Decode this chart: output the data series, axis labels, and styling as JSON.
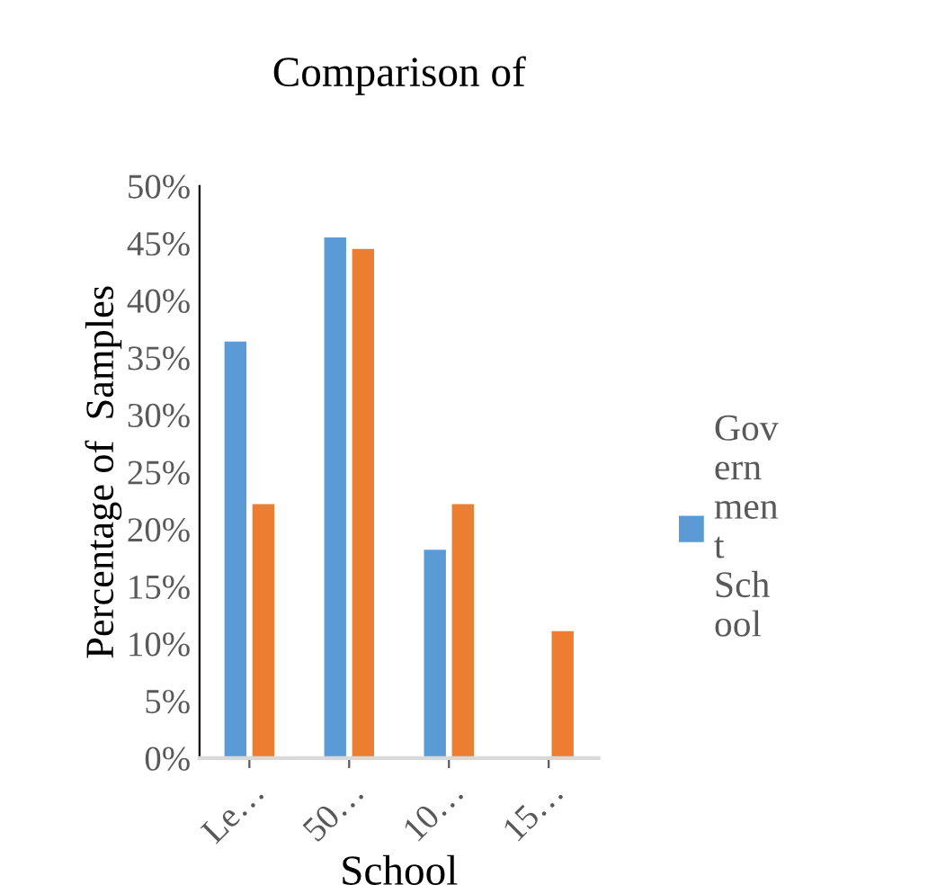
{
  "chart_data": {
    "type": "bar",
    "title": "Comparison of",
    "xlabel": "School",
    "ylabel": "Percentage of  Samples",
    "categories": [
      "Le…",
      "50…",
      "10…",
      "15…"
    ],
    "series": [
      {
        "name": "Government School",
        "color": "#5b9bd5",
        "values": [
          36.4,
          45.5,
          18.2,
          0
        ]
      },
      {
        "color": "#ed7d31",
        "values": [
          22.2,
          44.5,
          22.2,
          11.1
        ]
      }
    ],
    "ylim": [
      0,
      50
    ],
    "yticks": [
      {
        "value": 0,
        "label": "0%"
      },
      {
        "value": 5,
        "label": "5%"
      },
      {
        "value": 10,
        "label": "10%"
      },
      {
        "value": 15,
        "label": "15%"
      },
      {
        "value": 20,
        "label": "20%"
      },
      {
        "value": 25,
        "label": "25%"
      },
      {
        "value": 30,
        "label": "30%"
      },
      {
        "value": 35,
        "label": "35%"
      },
      {
        "value": 40,
        "label": "40%"
      },
      {
        "value": 45,
        "label": "45%"
      },
      {
        "value": 50,
        "label": "50%"
      }
    ],
    "legend": "right"
  }
}
